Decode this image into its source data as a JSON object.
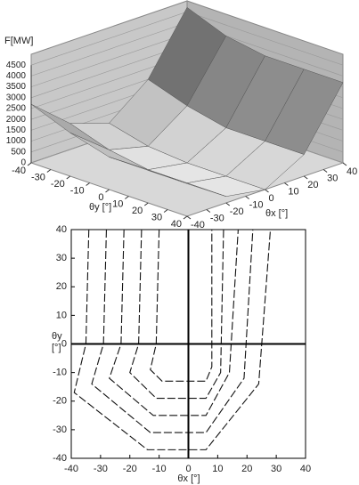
{
  "chart_data": [
    {
      "type": "surface",
      "z_label": "F[MW]",
      "x_label": "θx [°]",
      "y_label": "θy [°]",
      "x": [
        -40,
        -20,
        0,
        20,
        40
      ],
      "y": [
        -40,
        -20,
        0,
        20,
        40
      ],
      "z": [
        [
          2700,
          1200,
          600,
          2000,
          4700
        ],
        [
          2000,
          600,
          150,
          1400,
          4000
        ],
        [
          1500,
          300,
          0,
          1000,
          3700
        ],
        [
          1500,
          300,
          0,
          1000,
          3700
        ],
        [
          1500,
          300,
          0,
          1000,
          3700
        ]
      ],
      "xlim": [
        -40,
        40
      ],
      "ylim": [
        -40,
        40
      ],
      "zlim": [
        0,
        5000
      ],
      "xticks": [
        -40,
        -30,
        -20,
        -10,
        0,
        10,
        20,
        30,
        40
      ],
      "yticks": [
        -40,
        -30,
        -20,
        -10,
        0,
        10,
        20,
        30,
        40
      ],
      "zticks": [
        0,
        500,
        1000,
        1500,
        2000,
        2500,
        3000,
        3500,
        4000,
        4500
      ]
    },
    {
      "type": "contour",
      "x_label": "θx [°]",
      "y_label": "θy [°]",
      "xlim": [
        -40,
        40
      ],
      "ylim": [
        -40,
        40
      ],
      "xticks": [
        -40,
        -30,
        -20,
        -10,
        0,
        10,
        20,
        30,
        40
      ],
      "yticks": [
        -40,
        -30,
        -20,
        -10,
        0,
        10,
        20,
        30,
        40
      ],
      "lines": [
        {
          "x": [
            -10,
            -11,
            -13,
            -9,
            6,
            8,
            8
          ],
          "y": [
            40,
            0,
            -9,
            -13,
            -13,
            -8,
            40
          ]
        },
        {
          "x": [
            -16,
            -17,
            -20,
            -11,
            6,
            11,
            12
          ],
          "y": [
            40,
            0,
            -10,
            -19,
            -19,
            -10,
            40
          ]
        },
        {
          "x": [
            -22,
            -23,
            -27,
            -12,
            6,
            14,
            17
          ],
          "y": [
            40,
            0,
            -12,
            -25,
            -25,
            -10,
            40
          ]
        },
        {
          "x": [
            -28,
            -29,
            -33,
            -13,
            6,
            19,
            22
          ],
          "y": [
            40,
            0,
            -14,
            -31,
            -31,
            -12,
            40
          ]
        },
        {
          "x": [
            -34,
            -35,
            -39,
            -14,
            6,
            24,
            28
          ],
          "y": [
            40,
            0,
            -17,
            -37,
            -37,
            -14,
            40
          ]
        }
      ]
    }
  ]
}
